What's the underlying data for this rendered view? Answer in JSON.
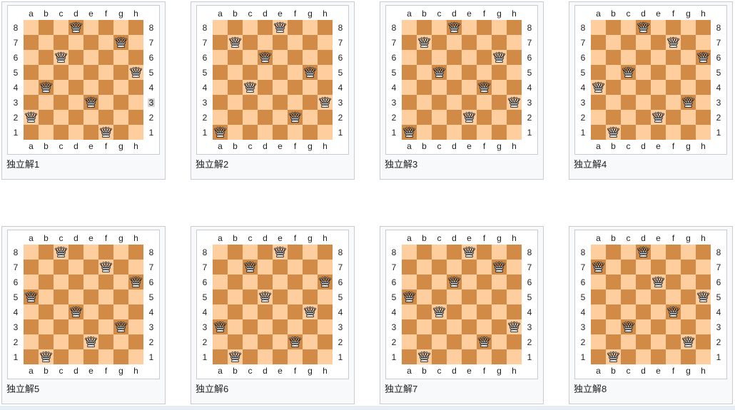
{
  "page": {
    "background": "#ffffff",
    "bottom_strip_color": "#e8eef6"
  },
  "board_theme": {
    "light_square": "#ffce9e",
    "dark_square": "#d18b47",
    "frame_bg": "#f8f9fa",
    "frame_border": "#c8ccd1",
    "inner_bg": "#ffffff",
    "inner_border": "#c8ccd1",
    "label_color": "#222222",
    "selection_highlight": "#d6d6d6"
  },
  "files": [
    "a",
    "b",
    "c",
    "d",
    "e",
    "f",
    "g",
    "h"
  ],
  "ranks": [
    "8",
    "7",
    "6",
    "5",
    "4",
    "3",
    "2",
    "1"
  ],
  "piece": {
    "name": "white-queen",
    "symbol": "♕"
  },
  "boards": [
    {
      "caption": "独立解1",
      "queens": [
        "d8",
        "g7",
        "c6",
        "h5",
        "b4",
        "e3",
        "a2",
        "f1"
      ],
      "highlight": {
        "side": "right",
        "rank": "3"
      }
    },
    {
      "caption": "独立解2",
      "queens": [
        "e8",
        "b7",
        "d6",
        "g5",
        "c4",
        "h3",
        "f2",
        "a1"
      ]
    },
    {
      "caption": "独立解3",
      "queens": [
        "d8",
        "b7",
        "g6",
        "c5",
        "f4",
        "h3",
        "e2",
        "a1"
      ]
    },
    {
      "caption": "独立解4",
      "queens": [
        "d8",
        "f7",
        "h6",
        "c5",
        "a4",
        "g3",
        "e2",
        "b1"
      ]
    },
    {
      "caption": "独立解5",
      "queens": [
        "c8",
        "f7",
        "h6",
        "a5",
        "d4",
        "g3",
        "e2",
        "b1"
      ]
    },
    {
      "caption": "独立解6",
      "queens": [
        "e8",
        "c7",
        "h6",
        "d5",
        "g4",
        "a3",
        "f2",
        "b1"
      ]
    },
    {
      "caption": "独立解7",
      "queens": [
        "e8",
        "g7",
        "d6",
        "a5",
        "c4",
        "h3",
        "f2",
        "b1"
      ]
    },
    {
      "caption": "独立解8",
      "queens": [
        "d8",
        "a7",
        "e6",
        "h5",
        "f4",
        "c3",
        "g2",
        "b1"
      ]
    }
  ]
}
